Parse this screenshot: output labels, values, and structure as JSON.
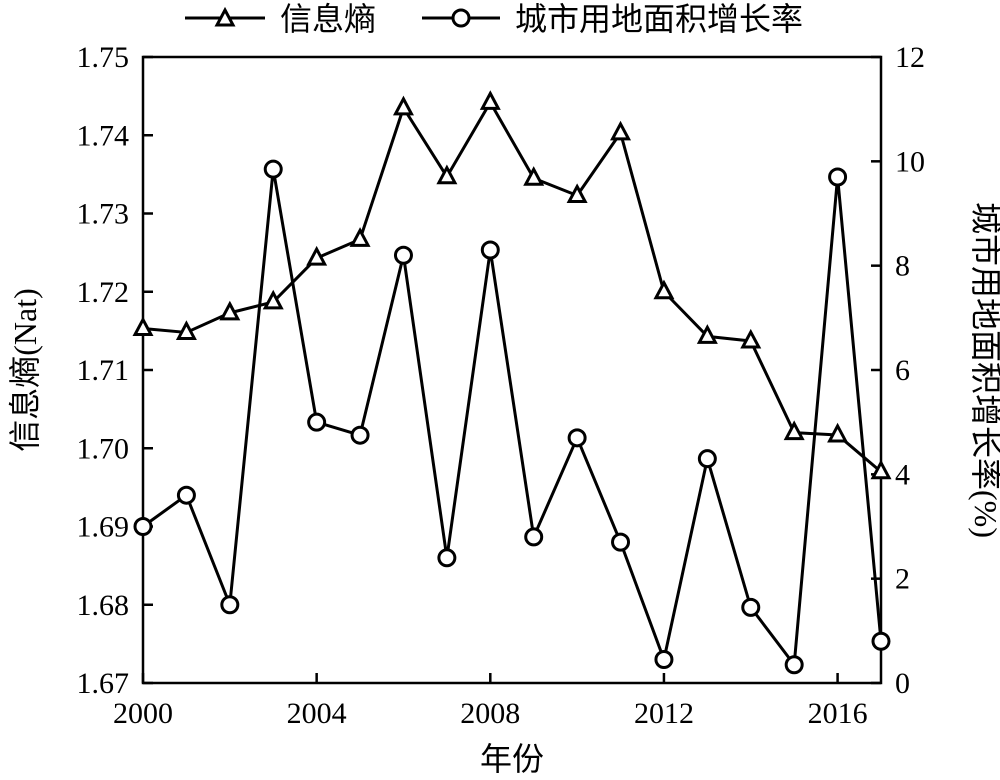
{
  "chart_data": {
    "type": "line",
    "title": "",
    "xlabel": "年份",
    "ylabel_left": "信息熵(Nat)",
    "ylabel_right": "城市用地面积增长率(%)",
    "xlim": [
      2000,
      2017
    ],
    "ylim_left": [
      1.67,
      1.75
    ],
    "ylim_right": [
      0,
      12
    ],
    "x_ticks": [
      2000,
      2004,
      2008,
      2012,
      2016
    ],
    "x_tick_labels": [
      "2000",
      "2004",
      "2008",
      "2012",
      "2016"
    ],
    "y_left_ticks": [
      1.67,
      1.68,
      1.69,
      1.7,
      1.71,
      1.72,
      1.73,
      1.74,
      1.75
    ],
    "y_left_tick_labels": [
      "1.67",
      "1.68",
      "1.69",
      "1.70",
      "1.71",
      "1.72",
      "1.73",
      "1.74",
      "1.75"
    ],
    "y_right_ticks": [
      0,
      2,
      4,
      6,
      8,
      10,
      12
    ],
    "y_right_tick_labels": [
      "0",
      "2",
      "4",
      "6",
      "8",
      "10",
      "12"
    ],
    "legend_position": "top",
    "grid": false,
    "x": [
      2000,
      2001,
      2002,
      2003,
      2004,
      2005,
      2006,
      2007,
      2008,
      2009,
      2010,
      2011,
      2012,
      2013,
      2014,
      2015,
      2016,
      2017
    ],
    "series": [
      {
        "name": "信息熵",
        "axis": "left",
        "marker": "triangle",
        "values": [
          1.7153,
          1.7148,
          1.7173,
          1.7187,
          1.7243,
          1.7267,
          1.7435,
          1.7347,
          1.7442,
          1.7345,
          1.7323,
          1.7403,
          1.72,
          1.7143,
          1.7137,
          1.702,
          1.7017,
          1.697
        ]
      },
      {
        "name": "城市用地面积增长率",
        "axis": "right",
        "marker": "circle",
        "values": [
          3.0,
          3.6,
          1.5,
          9.85,
          5.0,
          4.75,
          8.2,
          2.4,
          8.3,
          2.8,
          4.7,
          2.7,
          0.45,
          4.3,
          1.45,
          0.35,
          9.7,
          0.8
        ]
      }
    ]
  }
}
